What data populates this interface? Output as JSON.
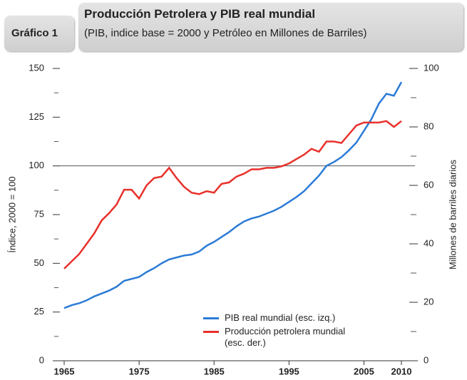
{
  "chart_data": {
    "type": "line",
    "label": "Gráfico 1",
    "title": "Producción Petrolera y PIB real mundial",
    "subtitle": "(PIB, indice base = 2000 y Petróleo en Millones de Barriles)",
    "y_label": "Índice, 2000 = 100",
    "y2_label": "Millones de barriles diarios",
    "x": [
      1965,
      1966,
      1967,
      1968,
      1969,
      1970,
      1971,
      1972,
      1973,
      1974,
      1975,
      1976,
      1977,
      1978,
      1979,
      1980,
      1981,
      1982,
      1983,
      1984,
      1985,
      1986,
      1987,
      1988,
      1989,
      1990,
      1991,
      1992,
      1993,
      1994,
      1995,
      1996,
      1997,
      1998,
      1999,
      2000,
      2001,
      2002,
      2003,
      2004,
      2005,
      2006,
      2007,
      2008,
      2009,
      2010
    ],
    "xlim": [
      1965,
      2010
    ],
    "xticks": [
      1965,
      1975,
      1985,
      1995,
      2005,
      2010
    ],
    "ylim": [
      0,
      150
    ],
    "yticks": [
      0,
      25,
      50,
      75,
      100,
      125,
      150
    ],
    "y2lim": [
      0,
      100
    ],
    "y2ticks": [
      0,
      20,
      40,
      60,
      80,
      100
    ],
    "hline": 100,
    "series": [
      {
        "name": "PIB real mundial (esc. izq.)",
        "color": "#2b7bd6",
        "axis": "y",
        "values": [
          27,
          28.5,
          29.5,
          31,
          33,
          34.5,
          36,
          38,
          41,
          42,
          43,
          45.5,
          47.5,
          50,
          52,
          53,
          54,
          54.5,
          56,
          59,
          61,
          63.5,
          66,
          69,
          71.5,
          73,
          74,
          75.5,
          77,
          79,
          81.5,
          84,
          87,
          91,
          95,
          100,
          102,
          104.5,
          108,
          112,
          118,
          124,
          132,
          137,
          136,
          143
        ]
      },
      {
        "name": "Producción petrolera mundial (esc. der.)",
        "color": "#e8302a",
        "axis": "y2",
        "values": [
          31.5,
          34,
          36.5,
          40,
          43.5,
          48,
          50.5,
          53.5,
          58.5,
          58.5,
          55.5,
          60,
          62.5,
          63,
          66,
          62.5,
          59.5,
          57.5,
          57,
          58,
          57.5,
          60.5,
          61,
          63,
          64,
          65.5,
          65.5,
          66,
          66,
          66.5,
          67.5,
          69,
          70.5,
          72.5,
          71.5,
          75,
          75,
          74.5,
          77.5,
          80.5,
          81.5,
          81.5,
          81.5,
          82,
          80,
          82
        ]
      }
    ]
  }
}
